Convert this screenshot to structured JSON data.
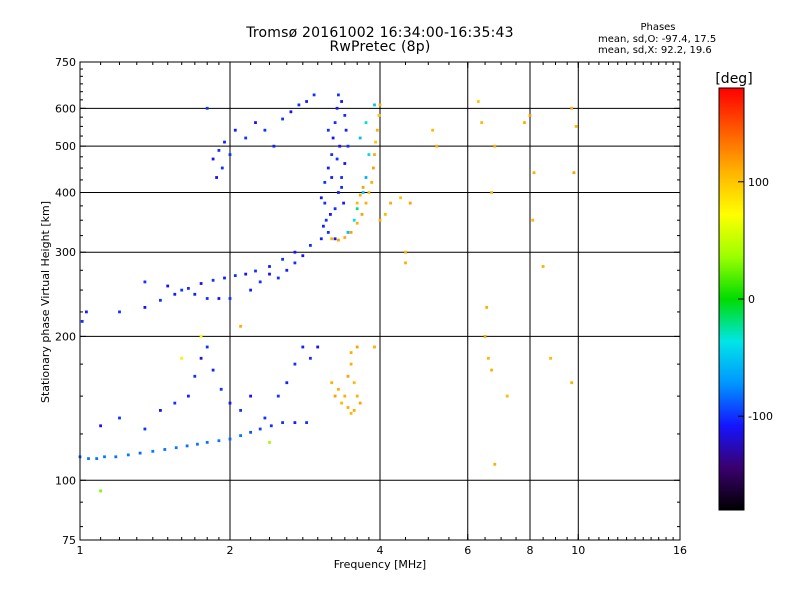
{
  "title": {
    "line1": "Tromsø 20161002 16:34:00-16:35:43",
    "line2": "RwPretec (8p)"
  },
  "stats": {
    "header": "Phases",
    "o_line": "mean, sd,O: -97.4, 17.5",
    "x_line": "mean, sd,X:  92.2, 19.6"
  },
  "colorbar": {
    "unit_label": "[deg]",
    "ticks": [
      {
        "value": 100,
        "label": "100"
      },
      {
        "value": 0,
        "label": "0"
      },
      {
        "value": -100,
        "label": "-100"
      }
    ],
    "range": [
      -180,
      180
    ],
    "colors": [
      "#000000",
      "#3a006e",
      "#1414ff",
      "#0096ff",
      "#00e6e6",
      "#00dc00",
      "#9bff00",
      "#ffff00",
      "#ffb400",
      "#ff5a00",
      "#ff0000"
    ]
  },
  "chart_data": {
    "type": "scatter",
    "title": "Tromsø 20161002 16:34:00-16:35:43",
    "subtitle": "RwPretec (8p)",
    "xlabel": "Frequency [MHz]",
    "ylabel": "Stationary phase Virtual Height [km]",
    "xscale": "log",
    "yscale": "log",
    "xlim": [
      1,
      16
    ],
    "ylim": [
      75,
      750
    ],
    "xticks": [
      {
        "value": 1,
        "label": "1"
      },
      {
        "value": 2,
        "label": "2"
      },
      {
        "value": 4,
        "label": "4"
      },
      {
        "value": 6,
        "label": "6"
      },
      {
        "value": 8,
        "label": "8"
      },
      {
        "value": 10,
        "label": "10"
      },
      {
        "value": 16,
        "label": "16"
      }
    ],
    "yticks": [
      {
        "value": 75,
        "label": "75"
      },
      {
        "value": 100,
        "label": "100"
      },
      {
        "value": 200,
        "label": "200"
      },
      {
        "value": 300,
        "label": "300"
      },
      {
        "value": 400,
        "label": "400"
      },
      {
        "value": 500,
        "label": "500"
      },
      {
        "value": 600,
        "label": "600"
      },
      {
        "value": 750,
        "label": "750"
      }
    ],
    "gridlines_x": [
      2,
      4,
      6,
      8,
      10
    ],
    "gridlines_y": [
      100,
      200,
      300,
      400,
      500,
      600
    ],
    "grid": true,
    "color_encoding": "phase (deg)",
    "series": [
      {
        "values": [
          [
            1.0,
            112,
            -80
          ],
          [
            1.04,
            111,
            -80
          ],
          [
            1.08,
            111,
            -82
          ],
          [
            1.12,
            112,
            -80
          ],
          [
            1.18,
            112,
            -82
          ],
          [
            1.25,
            113,
            -80
          ],
          [
            1.32,
            114,
            -85
          ],
          [
            1.4,
            115,
            -80
          ],
          [
            1.48,
            116,
            -82
          ],
          [
            1.56,
            117,
            -80
          ],
          [
            1.64,
            118,
            -82
          ],
          [
            1.72,
            119,
            -80
          ],
          [
            1.8,
            120,
            -82
          ],
          [
            1.9,
            121,
            -80
          ],
          [
            2.0,
            122,
            -85
          ],
          [
            2.1,
            124,
            -80
          ],
          [
            2.2,
            126,
            -90
          ],
          [
            2.3,
            128,
            -95
          ],
          [
            2.42,
            130,
            -100
          ],
          [
            2.55,
            132,
            -100
          ],
          [
            2.7,
            132,
            -105
          ],
          [
            2.85,
            132,
            -100
          ],
          [
            1.1,
            130,
            -110
          ],
          [
            1.2,
            135,
            -100
          ],
          [
            1.35,
            128,
            -100
          ],
          [
            1.45,
            140,
            -110
          ],
          [
            1.55,
            145,
            -100
          ],
          [
            1.65,
            150,
            -105
          ],
          [
            1.7,
            165,
            -100
          ],
          [
            1.75,
            180,
            -110
          ],
          [
            1.8,
            190,
            -100
          ],
          [
            1.85,
            170,
            -105
          ],
          [
            1.92,
            155,
            -100
          ],
          [
            2.0,
            145,
            -110
          ],
          [
            2.1,
            140,
            -100
          ],
          [
            2.2,
            150,
            -110
          ],
          [
            2.35,
            135,
            -100
          ],
          [
            2.5,
            150,
            -100
          ],
          [
            2.6,
            160,
            -105
          ],
          [
            2.7,
            175,
            -100
          ],
          [
            2.8,
            190,
            -105
          ],
          [
            2.9,
            180,
            -100
          ],
          [
            3.0,
            190,
            -110
          ],
          [
            1.01,
            215,
            -100
          ],
          [
            1.03,
            225,
            -105
          ],
          [
            1.2,
            225,
            -100
          ],
          [
            1.35,
            230,
            -110
          ],
          [
            1.45,
            238,
            -100
          ],
          [
            1.55,
            245,
            -105
          ],
          [
            1.65,
            252,
            -100
          ],
          [
            1.75,
            258,
            -110
          ],
          [
            1.85,
            262,
            -100
          ],
          [
            1.95,
            265,
            -105
          ],
          [
            2.05,
            268,
            -100
          ],
          [
            2.15,
            270,
            -110
          ],
          [
            2.25,
            274,
            -100
          ],
          [
            2.4,
            280,
            -105
          ],
          [
            2.55,
            290,
            -100
          ],
          [
            2.7,
            300,
            -110
          ],
          [
            2.9,
            310,
            -100
          ],
          [
            3.05,
            320,
            -105
          ],
          [
            1.35,
            260,
            -100
          ],
          [
            1.5,
            255,
            -110
          ],
          [
            1.6,
            250,
            -100
          ],
          [
            1.7,
            245,
            -105
          ],
          [
            1.8,
            240,
            -100
          ],
          [
            1.9,
            240,
            -110
          ],
          [
            2.0,
            240,
            -100
          ],
          [
            2.2,
            250,
            -105
          ],
          [
            2.3,
            260,
            -100
          ],
          [
            2.4,
            270,
            -110
          ],
          [
            2.5,
            265,
            -100
          ],
          [
            2.6,
            275,
            -105
          ],
          [
            2.7,
            285,
            -100
          ],
          [
            2.8,
            295,
            -110
          ],
          [
            1.8,
            600,
            -100
          ],
          [
            1.85,
            470,
            -110
          ],
          [
            1.9,
            490,
            -100
          ],
          [
            1.95,
            510,
            -105
          ],
          [
            2.0,
            480,
            -100
          ],
          [
            1.88,
            430,
            -110
          ],
          [
            1.93,
            450,
            -100
          ],
          [
            2.05,
            540,
            -105
          ],
          [
            2.15,
            520,
            -100
          ],
          [
            2.25,
            560,
            -110
          ],
          [
            2.35,
            540,
            -100
          ],
          [
            2.45,
            500,
            -105
          ],
          [
            2.55,
            570,
            -100
          ],
          [
            2.65,
            590,
            -110
          ],
          [
            2.75,
            610,
            -100
          ],
          [
            2.85,
            620,
            -105
          ],
          [
            2.95,
            640,
            -100
          ],
          [
            3.05,
            390,
            -110
          ],
          [
            3.1,
            420,
            -100
          ],
          [
            3.15,
            450,
            -105
          ],
          [
            3.2,
            480,
            -100
          ],
          [
            3.22,
            520,
            -110
          ],
          [
            3.25,
            560,
            -100
          ],
          [
            3.28,
            600,
            -105
          ],
          [
            3.3,
            640,
            -100
          ],
          [
            3.35,
            620,
            -110
          ],
          [
            3.4,
            580,
            -100
          ],
          [
            3.42,
            540,
            -105
          ],
          [
            3.45,
            500,
            -100
          ],
          [
            3.4,
            460,
            -110
          ],
          [
            3.35,
            430,
            -100
          ],
          [
            3.3,
            400,
            -105
          ],
          [
            3.25,
            370,
            -100
          ],
          [
            3.18,
            360,
            -110
          ],
          [
            3.12,
            350,
            -100
          ],
          [
            3.08,
            340,
            -105
          ],
          [
            3.15,
            330,
            -100
          ],
          [
            3.25,
            320,
            -110
          ],
          [
            3.35,
            410,
            -100
          ],
          [
            3.2,
            430,
            -105
          ],
          [
            3.28,
            470,
            -100
          ],
          [
            3.32,
            500,
            -110
          ],
          [
            3.15,
            540,
            -100
          ],
          [
            3.38,
            380,
            -105
          ],
          [
            3.1,
            380,
            -100
          ],
          [
            3.45,
            330,
            -55
          ],
          [
            3.55,
            350,
            -40
          ],
          [
            3.6,
            370,
            -20
          ],
          [
            3.7,
            400,
            -50
          ],
          [
            3.75,
            430,
            -60
          ],
          [
            3.8,
            480,
            -40
          ],
          [
            3.65,
            520,
            -55
          ],
          [
            3.75,
            560,
            -30
          ],
          [
            3.9,
            610,
            -50
          ],
          [
            3.2,
            320,
            110
          ],
          [
            3.3,
            318,
            115
          ],
          [
            3.4,
            322,
            110
          ],
          [
            3.5,
            330,
            115
          ],
          [
            3.6,
            345,
            110
          ],
          [
            3.68,
            360,
            115
          ],
          [
            3.75,
            380,
            110
          ],
          [
            3.8,
            400,
            105
          ],
          [
            3.85,
            420,
            110
          ],
          [
            3.88,
            450,
            115
          ],
          [
            3.9,
            480,
            110
          ],
          [
            3.92,
            510,
            100
          ],
          [
            3.95,
            540,
            110
          ],
          [
            3.98,
            580,
            100
          ],
          [
            4.0,
            610,
            110
          ],
          [
            3.7,
            410,
            115
          ],
          [
            3.65,
            395,
            110
          ],
          [
            3.6,
            380,
            105
          ],
          [
            4.0,
            350,
            110
          ],
          [
            4.1,
            360,
            105
          ],
          [
            4.2,
            380,
            110
          ],
          [
            4.4,
            390,
            100
          ],
          [
            4.6,
            380,
            115
          ],
          [
            4.5,
            300,
            110
          ],
          [
            4.5,
            285,
            110
          ],
          [
            3.2,
            160,
            110
          ],
          [
            3.25,
            150,
            115
          ],
          [
            3.3,
            155,
            110
          ],
          [
            3.35,
            145,
            105
          ],
          [
            3.4,
            150,
            110
          ],
          [
            3.45,
            165,
            115
          ],
          [
            3.5,
            175,
            110
          ],
          [
            3.55,
            160,
            105
          ],
          [
            3.6,
            150,
            110
          ],
          [
            3.65,
            145,
            115
          ],
          [
            3.55,
            140,
            110
          ],
          [
            3.5,
            138,
            105
          ],
          [
            3.45,
            142,
            110
          ],
          [
            3.6,
            190,
            115
          ],
          [
            3.5,
            185,
            110
          ],
          [
            3.9,
            190,
            110
          ],
          [
            5.2,
            500,
            110
          ],
          [
            5.1,
            540,
            105
          ],
          [
            6.3,
            620,
            100
          ],
          [
            6.4,
            560,
            105
          ],
          [
            6.5,
            200,
            115
          ],
          [
            6.55,
            230,
            110
          ],
          [
            6.6,
            180,
            105
          ],
          [
            6.7,
            170,
            110
          ],
          [
            6.8,
            108,
            110
          ],
          [
            6.7,
            400,
            105
          ],
          [
            6.8,
            500,
            110
          ],
          [
            7.2,
            150,
            105
          ],
          [
            7.8,
            560,
            110
          ],
          [
            8.0,
            580,
            115
          ],
          [
            8.1,
            350,
            105
          ],
          [
            8.15,
            440,
            110
          ],
          [
            8.5,
            280,
            110
          ],
          [
            8.8,
            180,
            105
          ],
          [
            9.7,
            600,
            110
          ],
          [
            9.8,
            440,
            115
          ],
          [
            9.9,
            550,
            105
          ],
          [
            9.7,
            160,
            110
          ],
          [
            1.1,
            95,
            30
          ],
          [
            1.6,
            180,
            80
          ],
          [
            1.75,
            200,
            70
          ],
          [
            2.1,
            210,
            110
          ],
          [
            2.4,
            120,
            40
          ]
        ]
      }
    ]
  }
}
